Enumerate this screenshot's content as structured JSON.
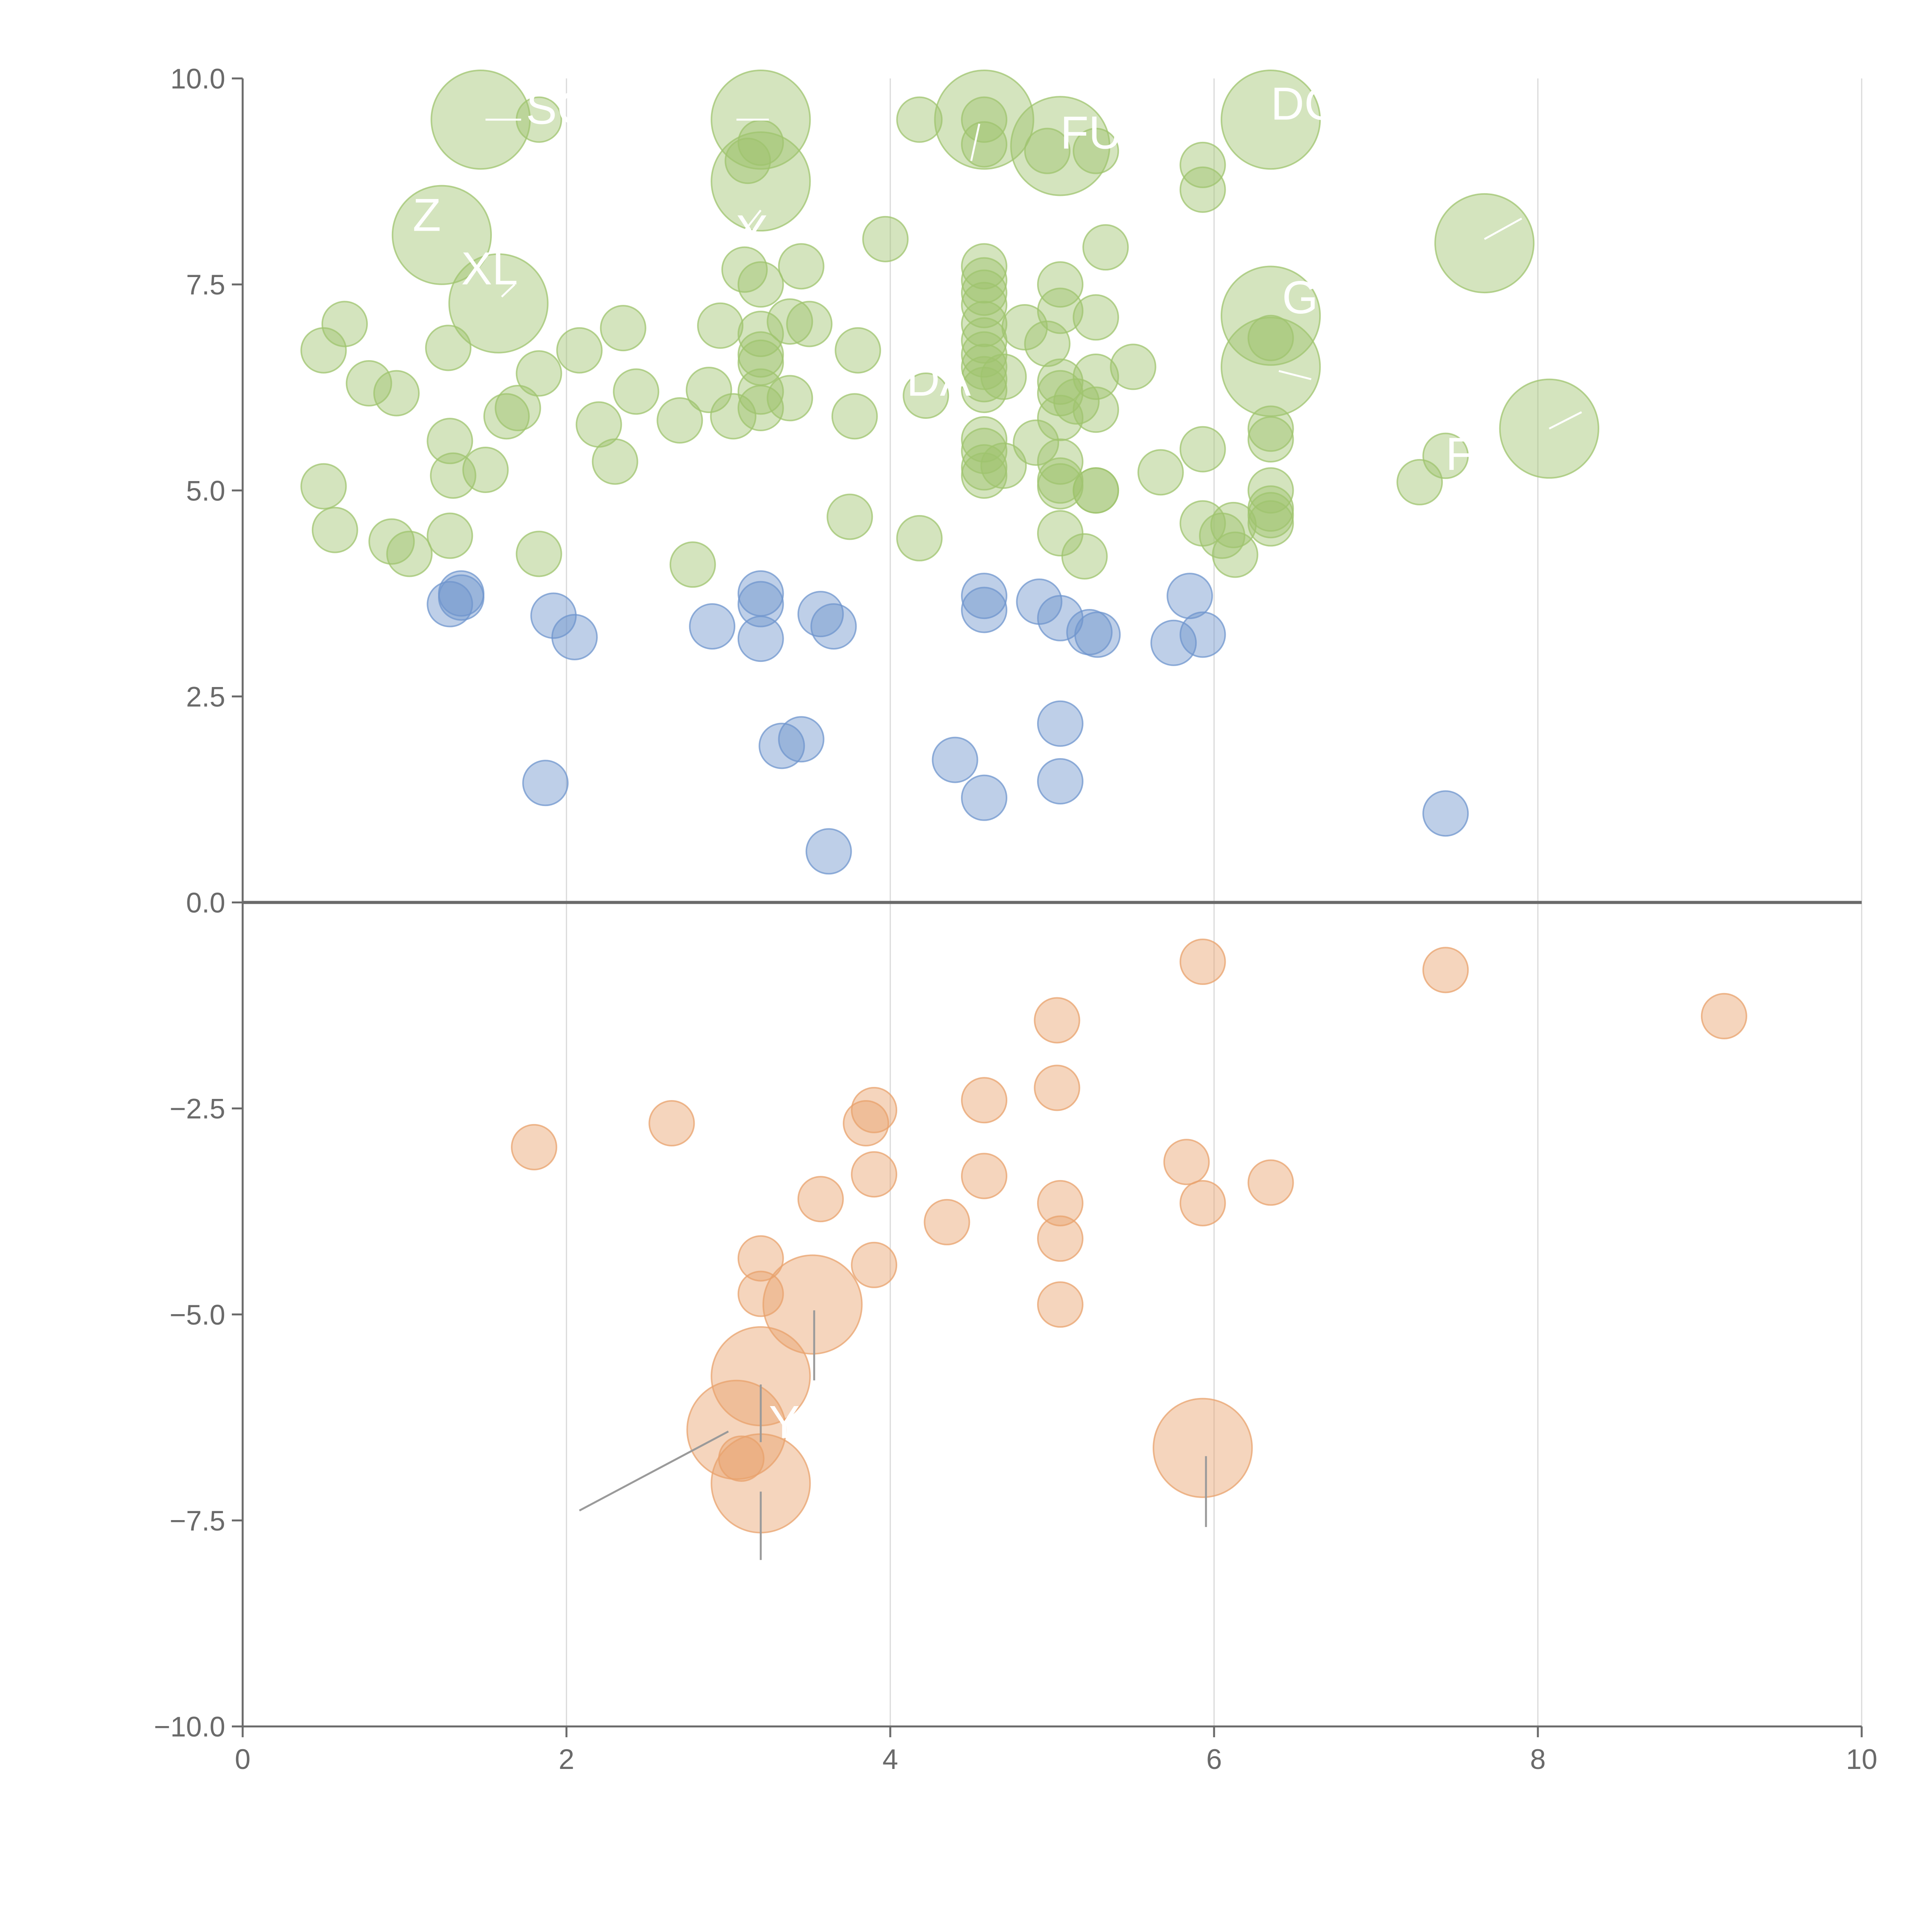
{
  "chart_data": {
    "type": "scatter",
    "title": "",
    "xlabel": "",
    "ylabel": "",
    "xlim": [
      0,
      10
    ],
    "ylim": [
      -10,
      10
    ],
    "xticks": [
      "0",
      "2",
      "4",
      "6",
      "8",
      "10"
    ],
    "yticks": [
      "10.0",
      "7.5",
      "5.0",
      "2.5",
      "0.0",
      "−2.5",
      "−5.0",
      "−7.5",
      "−10.0"
    ],
    "grid": "vertical lines at x ticks",
    "zero_line": 0,
    "colors": {
      "green": "#9fc46e",
      "blue": "#6f95cd",
      "orange": "#e8a26c",
      "axis": "#6a6a6a",
      "grid": "#d9d9d9"
    },
    "series": [
      {
        "name": "green",
        "color": "#9fc46e",
        "points": [
          [
            0.5,
            6.7,
            1
          ],
          [
            0.63,
            7.02,
            1
          ],
          [
            0.78,
            6.3,
            1
          ],
          [
            0.95,
            6.18,
            1
          ],
          [
            1.27,
            6.73,
            1
          ],
          [
            1.5,
            5.25,
            1
          ],
          [
            0.5,
            5.05,
            1
          ],
          [
            0.57,
            4.52,
            1
          ],
          [
            0.92,
            4.38,
            1
          ],
          [
            1.03,
            4.23,
            1
          ],
          [
            1.28,
            4.45,
            1
          ],
          [
            1.3,
            5.18,
            1
          ],
          [
            1.28,
            5.6,
            1
          ],
          [
            1.63,
            5.9,
            1
          ],
          [
            1.7,
            6.0,
            1
          ],
          [
            1.83,
            6.42,
            1
          ],
          [
            2.08,
            6.7,
            1
          ],
          [
            2.35,
            6.97,
            1
          ],
          [
            2.43,
            6.2,
            1
          ],
          [
            2.2,
            5.8,
            1
          ],
          [
            2.3,
            5.35,
            1
          ],
          [
            1.83,
            4.23,
            1
          ],
          [
            2.78,
            4.1,
            1
          ],
          [
            2.7,
            5.85,
            1
          ],
          [
            2.88,
            6.22,
            1
          ],
          [
            2.95,
            7.0,
            1
          ],
          [
            3.03,
            5.9,
            1
          ],
          [
            3.1,
            7.68,
            1
          ],
          [
            3.2,
            7.5,
            1
          ],
          [
            3.2,
            6.9,
            1
          ],
          [
            3.2,
            6.65,
            1
          ],
          [
            3.2,
            6.55,
            1
          ],
          [
            3.2,
            6.2,
            1
          ],
          [
            3.2,
            6.0,
            1
          ],
          [
            3.38,
            7.05,
            1
          ],
          [
            3.45,
            7.72,
            1
          ],
          [
            3.5,
            7.02,
            1
          ],
          [
            3.38,
            6.12,
            1
          ],
          [
            3.12,
            9.0,
            1
          ],
          [
            3.2,
            9.22,
            1
          ],
          [
            3.97,
            8.05,
            1
          ],
          [
            3.8,
            6.7,
            1
          ],
          [
            3.78,
            5.9,
            1
          ],
          [
            3.75,
            4.68,
            1
          ],
          [
            4.18,
            9.5,
            1
          ],
          [
            4.22,
            6.15,
            1
          ],
          [
            4.18,
            4.42,
            1
          ],
          [
            4.58,
            9.2,
            1
          ],
          [
            4.58,
            9.5,
            1
          ],
          [
            4.58,
            7.72,
            1
          ],
          [
            4.58,
            7.55,
            1
          ],
          [
            4.58,
            7.4,
            1
          ],
          [
            4.58,
            7.25,
            1
          ],
          [
            4.58,
            7.02,
            1
          ],
          [
            4.58,
            6.82,
            1
          ],
          [
            4.58,
            6.65,
            1
          ],
          [
            4.58,
            6.5,
            1
          ],
          [
            4.58,
            6.35,
            1
          ],
          [
            4.58,
            6.22,
            1
          ],
          [
            4.58,
            5.62,
            1
          ],
          [
            4.58,
            5.48,
            1
          ],
          [
            4.58,
            5.28,
            1
          ],
          [
            4.58,
            5.18,
            1
          ],
          [
            4.7,
            5.3,
            1
          ],
          [
            4.7,
            6.38,
            1
          ],
          [
            4.83,
            6.98,
            1
          ],
          [
            4.9,
            5.58,
            1
          ],
          [
            4.97,
            6.78,
            1
          ],
          [
            5.05,
            7.5,
            1
          ],
          [
            5.05,
            7.18,
            1
          ],
          [
            5.05,
            6.32,
            1
          ],
          [
            5.05,
            6.18,
            1
          ],
          [
            5.05,
            5.88,
            1
          ],
          [
            5.05,
            5.35,
            1
          ],
          [
            5.05,
            5.12,
            1
          ],
          [
            5.05,
            5.05,
            1
          ],
          [
            5.05,
            4.48,
            1
          ],
          [
            5.15,
            6.08,
            1
          ],
          [
            5.2,
            4.2,
            1
          ],
          [
            5.27,
            9.12,
            1
          ],
          [
            5.27,
            7.1,
            1
          ],
          [
            5.27,
            6.38,
            1
          ],
          [
            5.27,
            5.98,
            1
          ],
          [
            5.27,
            5.0,
            1
          ],
          [
            5.27,
            5.0,
            1
          ],
          [
            5.33,
            7.95,
            1
          ],
          [
            5.5,
            6.5,
            1
          ],
          [
            5.67,
            5.22,
            1
          ],
          [
            5.93,
            8.95,
            1
          ],
          [
            5.93,
            8.65,
            1
          ],
          [
            5.93,
            5.5,
            1
          ],
          [
            5.93,
            4.6,
            1
          ],
          [
            6.05,
            4.45,
            1
          ],
          [
            6.12,
            4.58,
            1
          ],
          [
            6.13,
            4.22,
            1
          ],
          [
            6.35,
            6.85,
            1
          ],
          [
            6.35,
            5.75,
            1
          ],
          [
            6.35,
            5.62,
            1
          ],
          [
            6.35,
            5.0,
            1
          ],
          [
            6.35,
            4.78,
            1
          ],
          [
            6.35,
            4.7,
            1
          ],
          [
            6.35,
            4.6,
            1
          ],
          [
            7.27,
            5.1,
            1
          ],
          [
            7.43,
            5.42,
            1
          ],
          [
            4.97,
            9.12,
            1
          ],
          [
            1.47,
            9.5,
            2.2
          ],
          [
            1.83,
            9.5,
            1
          ],
          [
            1.23,
            8.1,
            2.2
          ],
          [
            1.58,
            7.27,
            2.2
          ],
          [
            3.2,
            9.5,
            2.2
          ],
          [
            3.2,
            8.75,
            2.2
          ],
          [
            4.58,
            9.5,
            2.2
          ],
          [
            5.05,
            9.18,
            2.2
          ],
          [
            6.35,
            9.5,
            2.2
          ],
          [
            6.35,
            7.12,
            2.2
          ],
          [
            6.35,
            6.5,
            2.2
          ],
          [
            7.67,
            8.0,
            2.2
          ],
          [
            8.07,
            5.75,
            2.2
          ]
        ]
      },
      {
        "name": "blue",
        "color": "#6f95cd",
        "points": [
          [
            1.28,
            3.62,
            1
          ],
          [
            1.35,
            3.75,
            1
          ],
          [
            1.35,
            3.7,
            1
          ],
          [
            1.92,
            3.48,
            1
          ],
          [
            2.05,
            3.22,
            1
          ],
          [
            1.87,
            1.45,
            1
          ],
          [
            2.9,
            3.35,
            1
          ],
          [
            3.2,
            3.75,
            1
          ],
          [
            3.2,
            3.62,
            1
          ],
          [
            3.2,
            3.2,
            1
          ],
          [
            3.57,
            3.5,
            1
          ],
          [
            3.65,
            3.35,
            1
          ],
          [
            3.33,
            1.9,
            1
          ],
          [
            3.45,
            1.98,
            1
          ],
          [
            3.62,
            0.62,
            1
          ],
          [
            4.58,
            3.72,
            1
          ],
          [
            4.58,
            3.55,
            1
          ],
          [
            4.4,
            1.73,
            1
          ],
          [
            4.58,
            1.27,
            1
          ],
          [
            4.92,
            3.65,
            1
          ],
          [
            5.05,
            3.45,
            1
          ],
          [
            5.05,
            2.17,
            1
          ],
          [
            5.05,
            1.47,
            1
          ],
          [
            5.23,
            3.28,
            1
          ],
          [
            5.28,
            3.25,
            1
          ],
          [
            5.75,
            3.15,
            1
          ],
          [
            5.85,
            3.72,
            1
          ],
          [
            5.93,
            3.25,
            1
          ],
          [
            7.43,
            1.08,
            1
          ]
        ]
      },
      {
        "name": "orange",
        "color": "#e8a26c",
        "points": [
          [
            1.8,
            -2.97,
            1
          ],
          [
            2.65,
            -2.68,
            1
          ],
          [
            3.2,
            -4.32,
            1
          ],
          [
            3.2,
            -4.75,
            1
          ],
          [
            3.08,
            -6.75,
            1
          ],
          [
            3.57,
            -3.6,
            1
          ],
          [
            3.85,
            -2.68,
            1
          ],
          [
            3.9,
            -2.52,
            1
          ],
          [
            3.9,
            -3.3,
            1
          ],
          [
            3.9,
            -4.4,
            1
          ],
          [
            4.35,
            -3.88,
            1
          ],
          [
            4.58,
            -2.4,
            1
          ],
          [
            4.58,
            -3.32,
            1
          ],
          [
            5.03,
            -1.43,
            1
          ],
          [
            5.03,
            -2.25,
            1
          ],
          [
            5.05,
            -3.65,
            1
          ],
          [
            5.05,
            -4.08,
            1
          ],
          [
            5.05,
            -4.88,
            1
          ],
          [
            5.83,
            -3.15,
            1
          ],
          [
            5.93,
            -0.72,
            1
          ],
          [
            5.93,
            -3.65,
            1
          ],
          [
            6.35,
            -3.4,
            1
          ],
          [
            7.43,
            -0.82,
            1
          ],
          [
            9.15,
            -1.38,
            1
          ],
          [
            3.52,
            -4.88,
            2.2
          ],
          [
            3.2,
            -5.75,
            2.2
          ],
          [
            3.05,
            -6.4,
            2.2
          ],
          [
            3.2,
            -7.05,
            2.2
          ],
          [
            5.93,
            -6.62,
            2.2
          ]
        ]
      }
    ],
    "annotations": [
      {
        "text": "SC",
        "x": 1.75,
        "y": 9.45,
        "line": [
          [
            1.5,
            9.5
          ],
          [
            1.72,
            9.5
          ]
        ]
      },
      {
        "text": "Z",
        "x": 1.05,
        "y": 8.15,
        "line": []
      },
      {
        "text": "XL",
        "x": 1.35,
        "y": 7.5,
        "line": [
          [
            1.6,
            7.35
          ],
          [
            1.68,
            7.5
          ]
        ]
      },
      {
        "text": "Y",
        "x": 3.05,
        "y": 7.95,
        "line": [
          [
            3.2,
            8.4
          ],
          [
            3.1,
            8.15
          ]
        ]
      },
      {
        "text": "FU",
        "x": 5.05,
        "y": 9.15,
        "line": [
          [
            4.55,
            9.45
          ],
          [
            4.5,
            9.0
          ]
        ]
      },
      {
        "text": "DC",
        "x": 6.35,
        "y": 9.5,
        "line": [
          [
            3.05,
            9.5
          ],
          [
            3.25,
            9.5
          ]
        ]
      },
      {
        "text": "GI",
        "x": 6.42,
        "y": 7.15,
        "line": []
      },
      {
        "text": "DA",
        "x": 4.1,
        "y": 6.15,
        "line": [
          [
            6.4,
            6.45
          ],
          [
            6.6,
            6.35
          ]
        ]
      },
      {
        "text": "F",
        "x": 7.43,
        "y": 5.25,
        "line": []
      },
      {
        "text": "",
        "x": 8.0,
        "y": 8.6,
        "line": [
          [
            7.67,
            8.05
          ],
          [
            7.9,
            8.3
          ]
        ]
      },
      {
        "text": "",
        "x": 8.3,
        "y": 6.0,
        "line": [
          [
            8.07,
            5.75
          ],
          [
            8.27,
            5.95
          ]
        ]
      },
      {
        "text": "Y",
        "x": 3.25,
        "y": -6.5,
        "line": [
          [
            2.08,
            -7.38
          ],
          [
            3.0,
            -6.42
          ]
        ]
      },
      {
        "text": "",
        "x": 3.53,
        "y": -5.4,
        "line": [
          [
            3.53,
            -4.95
          ],
          [
            3.53,
            -5.8
          ]
        ]
      },
      {
        "text": "",
        "x": 3.2,
        "y": -6.2,
        "line": [
          [
            3.2,
            -5.85
          ],
          [
            3.2,
            -6.55
          ]
        ]
      },
      {
        "text": "",
        "x": 3.2,
        "y": -7.6,
        "line": [
          [
            3.2,
            -7.15
          ],
          [
            3.2,
            -7.98
          ]
        ]
      },
      {
        "text": "",
        "x": 5.95,
        "y": -7.3,
        "line": [
          [
            5.95,
            -6.72
          ],
          [
            5.95,
            -7.58
          ]
        ]
      }
    ]
  }
}
